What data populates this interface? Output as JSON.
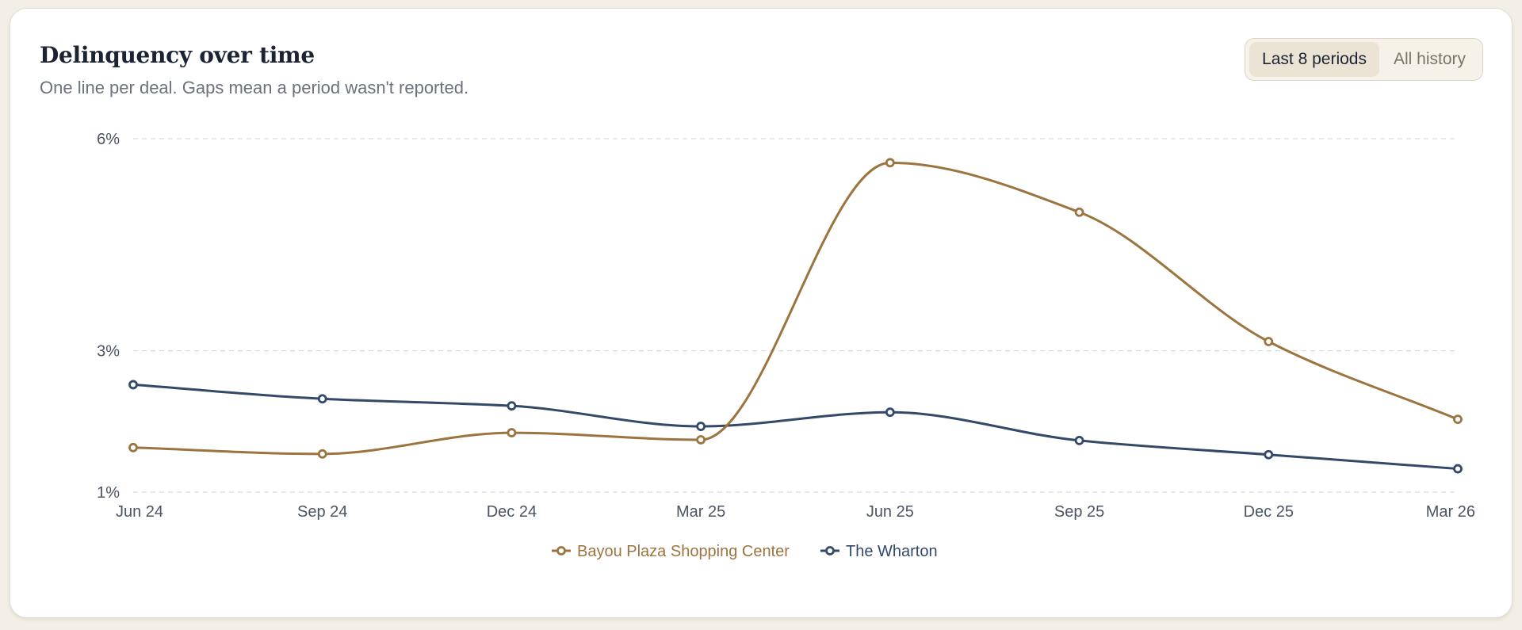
{
  "header": {
    "title": "Delinquency over time",
    "subtitle": "One line per deal. Gaps mean a period wasn't reported."
  },
  "period_toggle": {
    "options": [
      "Last 8 periods",
      "All history"
    ],
    "selected": "Last 8 periods"
  },
  "chart_data": {
    "type": "line",
    "title": "Delinquency over time",
    "categories": [
      "Jun 24",
      "Sep 24",
      "Dec 24",
      "Mar 25",
      "Jun 25",
      "Sep 25",
      "Dec 25",
      "Mar 26"
    ],
    "y_ticks": [
      1,
      3,
      6
    ],
    "y_tick_labels": [
      "1%",
      "3%",
      "6%"
    ],
    "ylim": [
      1,
      6
    ],
    "grid": true,
    "legend_position": "bottom-center",
    "series": [
      {
        "name": "Bayou Plaza Shopping Center",
        "color": "#9b7440",
        "values": [
          1.63,
          1.54,
          1.84,
          1.74,
          5.66,
          4.96,
          3.13,
          2.03
        ]
      },
      {
        "name": "The Wharton",
        "color": "#34486a",
        "values": [
          2.52,
          2.32,
          2.22,
          1.93,
          2.13,
          1.73,
          1.53,
          1.33
        ]
      }
    ]
  }
}
